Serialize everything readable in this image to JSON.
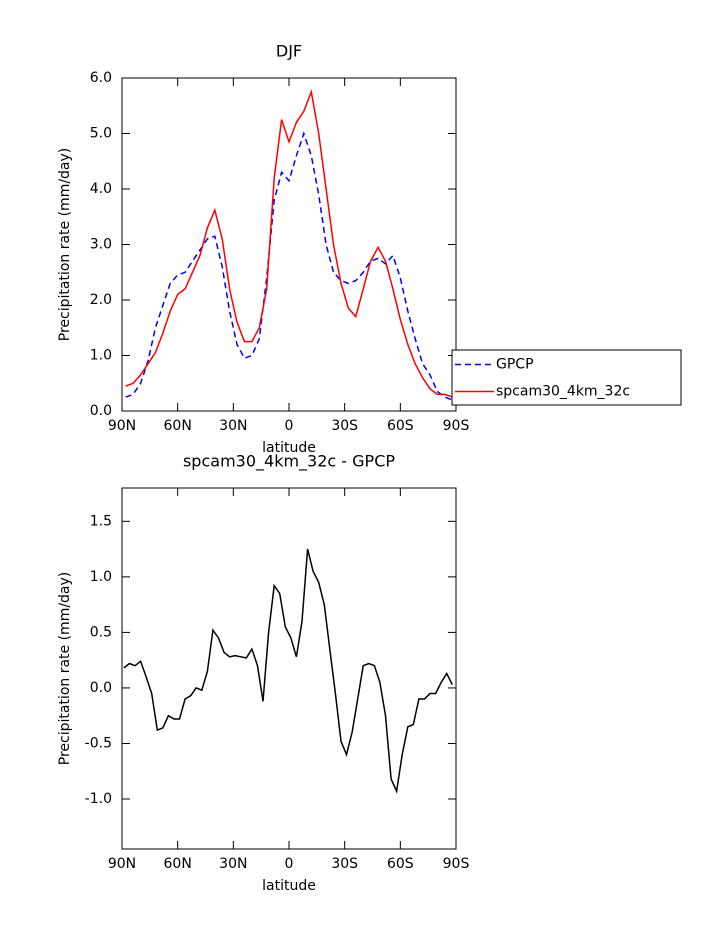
{
  "chart_data": [
    {
      "type": "line",
      "title": "DJF",
      "x_label": "latitude",
      "y_label": "Precipitation rate (mm/day)",
      "x": [
        88,
        84,
        80,
        76,
        72,
        68,
        64,
        60,
        56,
        52,
        48,
        44,
        40,
        36,
        32,
        28,
        24,
        20,
        16,
        12,
        8,
        4,
        0,
        -4,
        -8,
        -12,
        -16,
        -20,
        -24,
        -28,
        -32,
        -36,
        -40,
        -44,
        -48,
        -52,
        -56,
        -60,
        -64,
        -68,
        -72,
        -76,
        -80,
        -84,
        -88
      ],
      "xlim": [
        90,
        -90
      ],
      "xticks": [
        {
          "value": 90,
          "label": "90N"
        },
        {
          "value": 60,
          "label": "60N"
        },
        {
          "value": 30,
          "label": "30N"
        },
        0,
        {
          "value": -30,
          "label": "30S"
        },
        {
          "value": -60,
          "label": "60S"
        },
        {
          "value": -90,
          "label": "90S"
        }
      ],
      "ylim": [
        0,
        6
      ],
      "yticks": [
        {
          "value": 0,
          "label": "0.0"
        },
        {
          "value": 1,
          "label": "1.0"
        },
        {
          "value": 2,
          "label": "2.0"
        },
        {
          "value": 3,
          "label": "3.0"
        },
        {
          "value": 4,
          "label": "4.0"
        },
        {
          "value": 5,
          "label": "5.0"
        },
        {
          "value": 6,
          "label": "6.0"
        }
      ],
      "legend": "right",
      "series": [
        {
          "name": "GPCP",
          "color": "#0000ff",
          "dashed": true,
          "values": [
            0.25,
            0.3,
            0.5,
            0.9,
            1.5,
            1.9,
            2.3,
            2.45,
            2.5,
            2.7,
            2.9,
            3.1,
            3.15,
            2.6,
            1.8,
            1.2,
            0.95,
            1.0,
            1.3,
            2.4,
            3.8,
            4.3,
            4.15,
            4.6,
            5.0,
            4.6,
            3.9,
            3.0,
            2.5,
            2.35,
            2.3,
            2.35,
            2.5,
            2.7,
            2.75,
            2.65,
            2.8,
            2.4,
            1.8,
            1.3,
            0.85,
            0.65,
            0.35,
            0.25,
            0.2
          ]
        },
        {
          "name": "spcam30_4km_32c",
          "color": "#ff0000",
          "dashed": false,
          "values": [
            0.45,
            0.5,
            0.65,
            0.85,
            1.05,
            1.4,
            1.8,
            2.1,
            2.2,
            2.5,
            2.8,
            3.3,
            3.62,
            3.1,
            2.2,
            1.6,
            1.25,
            1.25,
            1.5,
            2.2,
            4.2,
            5.25,
            4.85,
            5.2,
            5.4,
            5.75,
            5.0,
            4.0,
            3.0,
            2.3,
            1.85,
            1.7,
            2.2,
            2.7,
            2.95,
            2.7,
            2.2,
            1.65,
            1.2,
            0.85,
            0.6,
            0.4,
            0.3,
            0.3,
            0.25
          ]
        }
      ]
    },
    {
      "type": "line",
      "title": "spcam30_4km_32c - GPCP",
      "x_label": "latitude",
      "y_label": "Precipitation rate (mm/day)",
      "x": [
        89,
        86,
        83,
        80,
        77,
        74,
        71,
        68,
        65,
        62,
        59,
        56,
        53,
        50,
        47,
        44,
        41,
        38,
        35,
        32,
        29,
        26,
        23,
        20,
        17,
        14,
        11,
        8,
        5,
        2,
        -1,
        -4,
        -7,
        -10,
        -13,
        -16,
        -19,
        -22,
        -25,
        -28,
        -31,
        -34,
        -37,
        -40,
        -43,
        -46,
        -49,
        -52,
        -55,
        -58,
        -61,
        -64,
        -67,
        -70,
        -73,
        -76,
        -79,
        -82,
        -85,
        -88
      ],
      "xlim": [
        90,
        -90
      ],
      "xticks": [
        {
          "value": 90,
          "label": "90N"
        },
        {
          "value": 60,
          "label": "60N"
        },
        {
          "value": 30,
          "label": "30N"
        },
        0,
        {
          "value": -30,
          "label": "30S"
        },
        {
          "value": -60,
          "label": "60S"
        },
        {
          "value": -90,
          "label": "90S"
        }
      ],
      "ylim": [
        -1.45,
        1.8
      ],
      "yticks": [
        {
          "value": -1,
          "label": "-1.0"
        },
        -0.5,
        {
          "value": 0,
          "label": "0.0"
        },
        0.5,
        {
          "value": 1,
          "label": "1.0"
        },
        1.5
      ],
      "series": [
        {
          "color": "#000000",
          "dashed": false,
          "values": [
            0.18,
            0.22,
            0.2,
            0.24,
            0.1,
            -0.05,
            -0.38,
            -0.36,
            -0.25,
            -0.28,
            -0.28,
            -0.1,
            -0.07,
            0.0,
            -0.02,
            0.15,
            0.52,
            0.45,
            0.32,
            0.28,
            0.29,
            0.28,
            0.27,
            0.35,
            0.2,
            -0.12,
            0.5,
            0.92,
            0.85,
            0.55,
            0.45,
            0.28,
            0.6,
            1.25,
            1.05,
            0.95,
            0.75,
            0.35,
            -0.05,
            -0.48,
            -0.6,
            -0.4,
            -0.1,
            0.2,
            0.22,
            0.2,
            0.05,
            -0.25,
            -0.82,
            -0.93,
            -0.6,
            -0.35,
            -0.33,
            -0.1,
            -0.1,
            -0.05,
            -0.05,
            0.05,
            0.13,
            0.03
          ]
        }
      ]
    }
  ]
}
